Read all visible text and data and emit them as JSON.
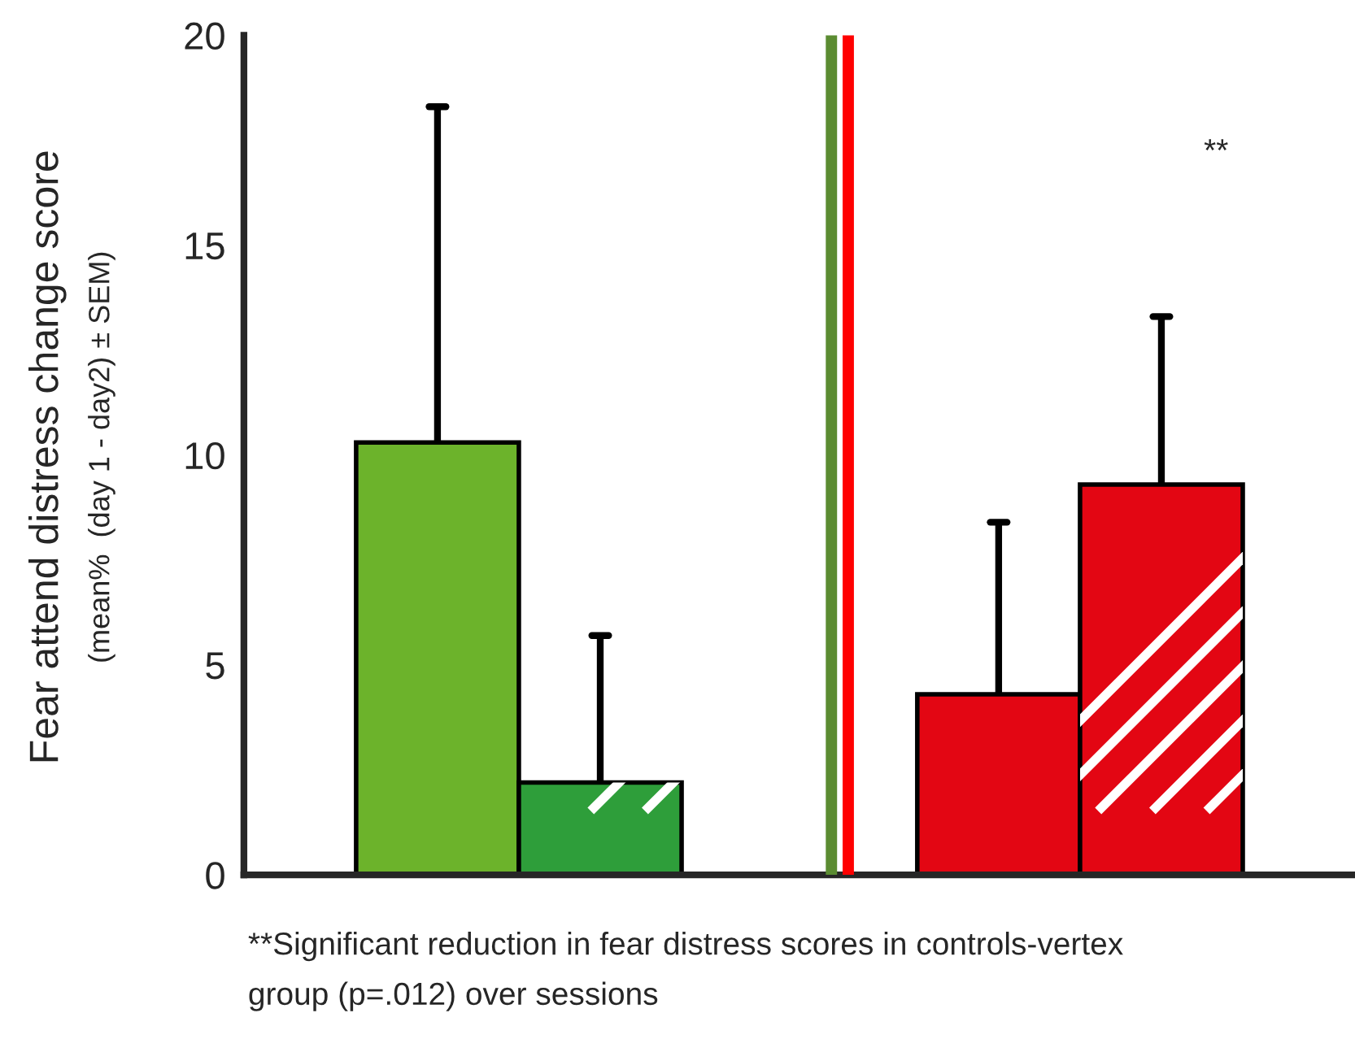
{
  "chart_data": {
    "type": "bar",
    "ylabel": "Fear attend distress change score\n(mean%  (day 1 - day2) ± SEM)",
    "categories": [
      null,
      null
    ],
    "series": [
      {
        "colors": [
          "#6cb32b",
          "#e30613"
        ],
        "values": [
          10.3,
          4.3
        ],
        "errors": [
          [
            10.3,
            18.3
          ],
          [
            4.3,
            8.4
          ]
        ]
      },
      {
        "colors": [
          "#2e9e3a",
          "#e30613"
        ],
        "values": [
          2.2,
          9.3
        ],
        "errors": [
          [
            2.2,
            5.7
          ],
          [
            9.3,
            13.3
          ]
        ]
      }
    ],
    "ylim": [
      0,
      20
    ],
    "yticks": [
      0,
      5,
      10,
      15,
      20
    ],
    "ref_lines": [
      {
        "axis": "x",
        "color": "#5b8c32"
      },
      {
        "axis": "x",
        "color": "#ff0000"
      }
    ],
    "annotations": [
      "**",
      "**Significant reduction in fear distress scores in controls-vertex\ngroup (p=.012) over sessions"
    ]
  }
}
